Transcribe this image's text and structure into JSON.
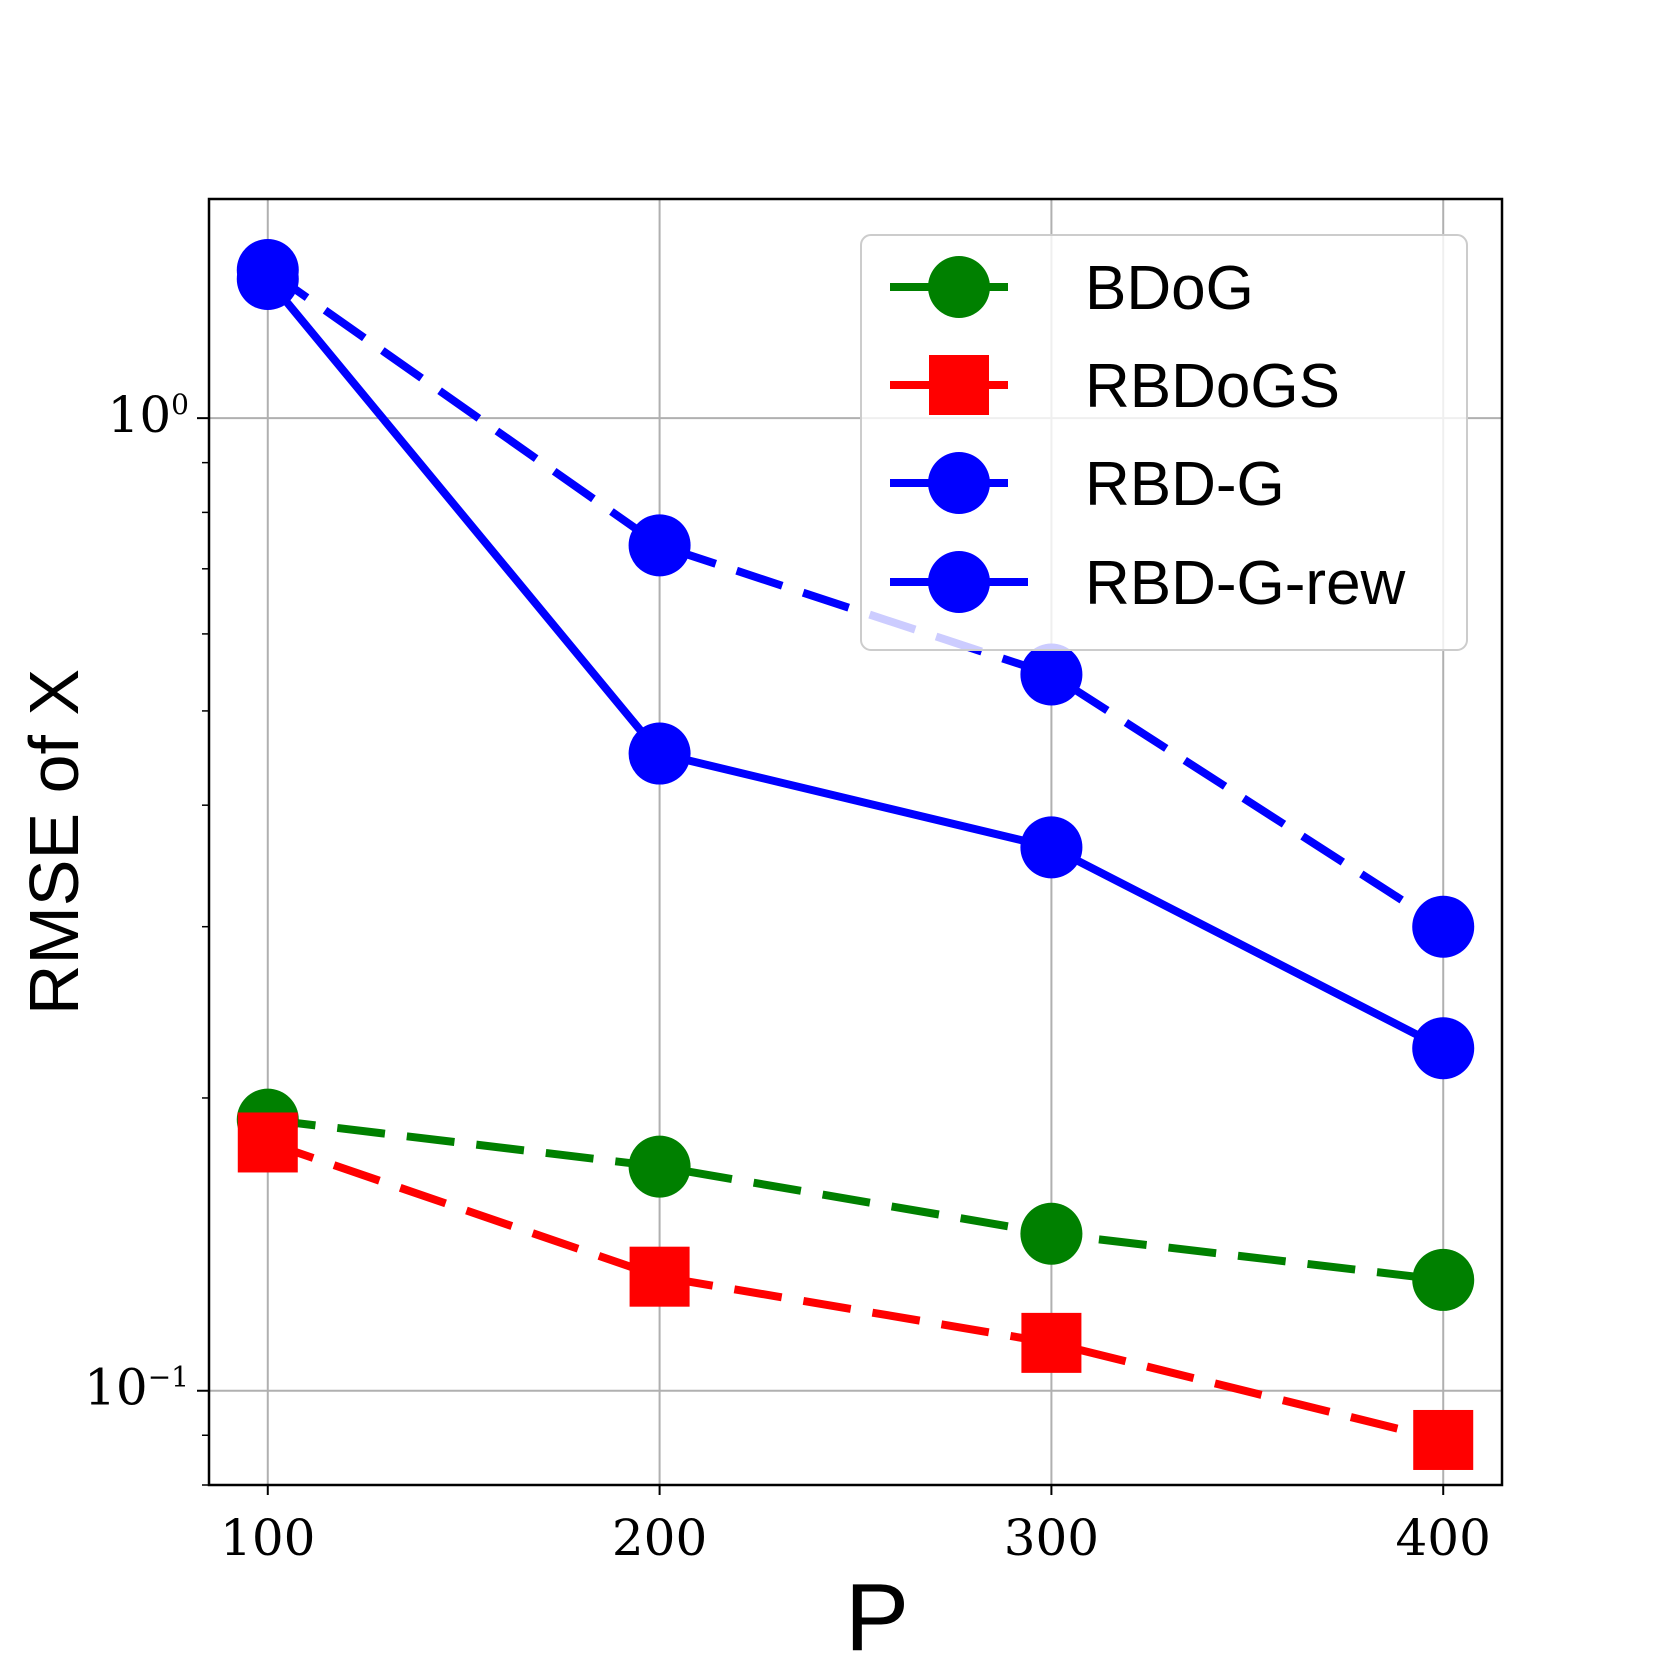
{
  "chart_data": {
    "type": "line",
    "title": "",
    "xlabel": "P",
    "ylabel": "RMSE of X",
    "x": [
      100,
      200,
      300,
      400
    ],
    "xticks": [
      "100",
      "200",
      "300",
      "400"
    ],
    "xlim": [
      85,
      415
    ],
    "yscale": "log",
    "ylim": [
      0.08,
      1.68
    ],
    "yticks": [
      {
        "base": "10",
        "exp": "0",
        "value": 1
      },
      {
        "base": "10",
        "exp": "−1",
        "value": 0.1
      }
    ],
    "grid": true,
    "legend_position": "top-right",
    "series": [
      {
        "name": "BDoG",
        "values": [
          0.19,
          0.17,
          0.145,
          0.13
        ],
        "color": "#008000",
        "linestyle": "dashed",
        "marker": "circle"
      },
      {
        "name": "RBDoGS",
        "values": [
          0.18,
          0.131,
          0.112,
          0.089
        ],
        "color": "#ff0000",
        "linestyle": "dashed",
        "marker": "square"
      },
      {
        "name": "RBD-G",
        "values": [
          1.42,
          0.74,
          0.545,
          0.3
        ],
        "color": "#0000ff",
        "linestyle": "dashed",
        "marker": "circle"
      },
      {
        "name": "RBD-G-rew",
        "values": [
          1.39,
          0.452,
          0.362,
          0.225
        ],
        "color": "#0000ff",
        "linestyle": "solid",
        "marker": "circle"
      }
    ]
  }
}
